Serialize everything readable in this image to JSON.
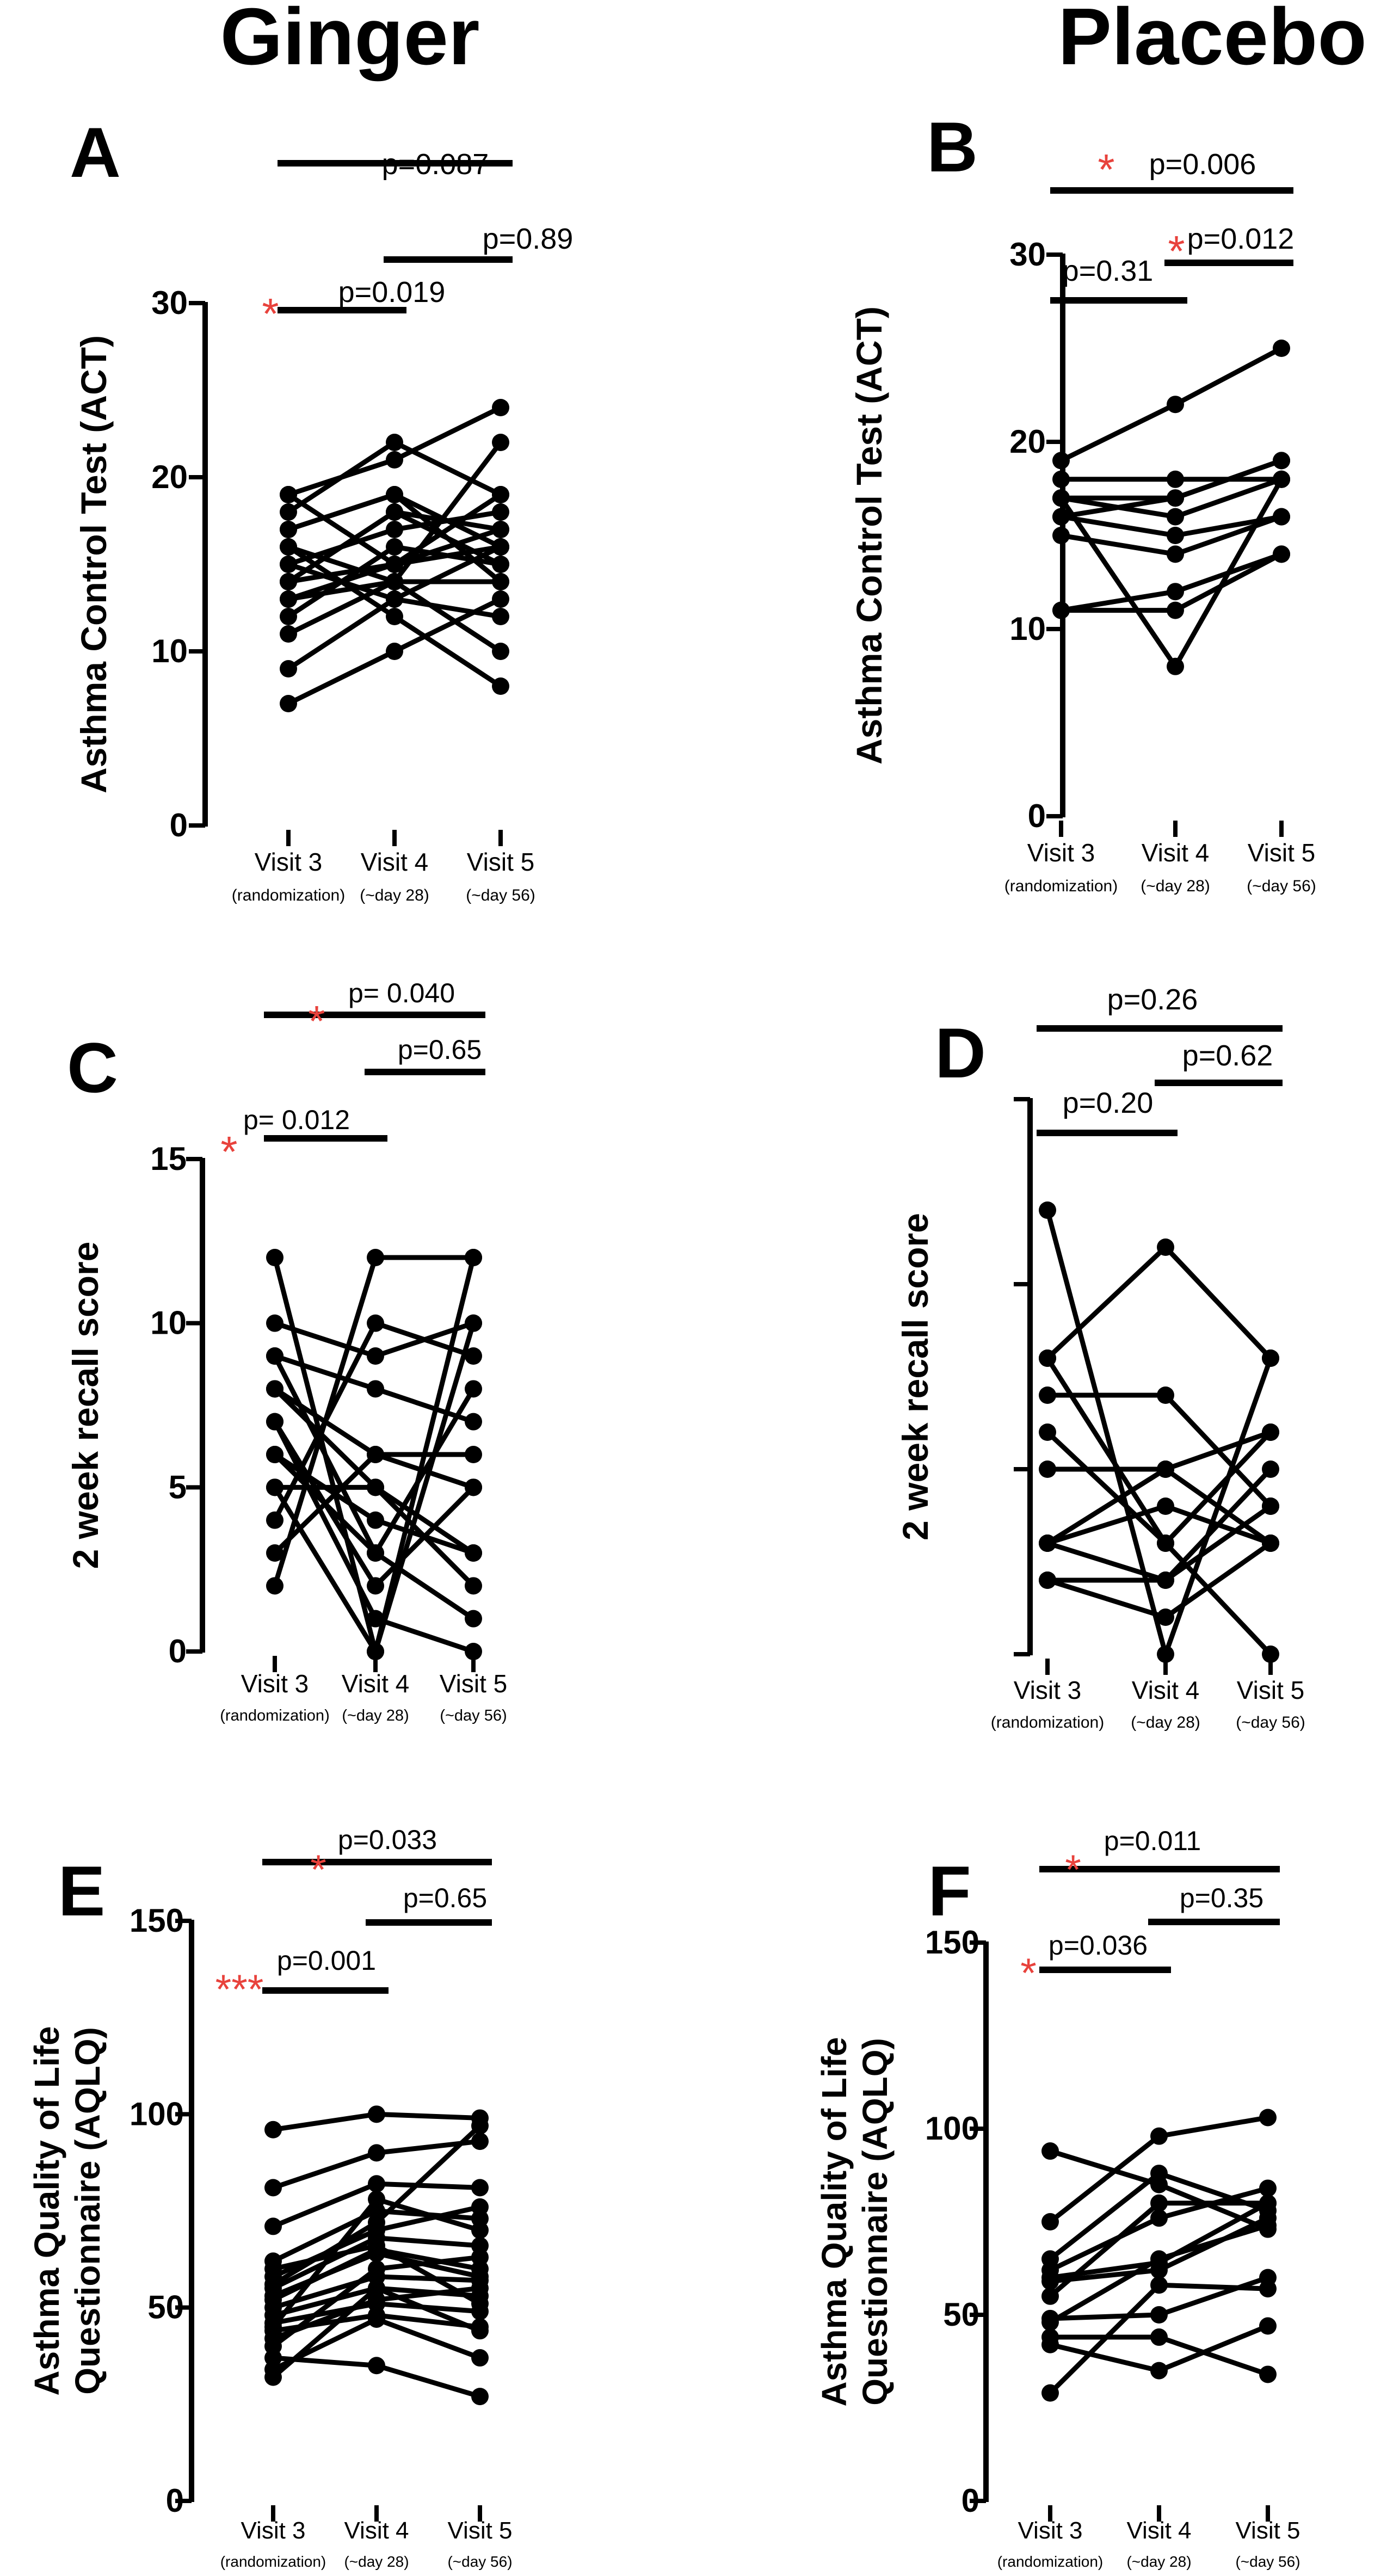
{
  "column_titles": {
    "ginger": "Ginger",
    "placebo": "Placebo"
  },
  "chart_data": [
    {
      "letter": "A",
      "type": "line",
      "group": "Ginger",
      "ylabel": "Asthma Control Test (ACT)",
      "ylim": [
        0,
        30
      ],
      "yticks": [
        0,
        10,
        20,
        30
      ],
      "ytick_labels": [
        "0",
        "10",
        "20",
        "30"
      ],
      "categories": [
        "Visit 3",
        "Visit 4",
        "Visit 5"
      ],
      "category_sublabels": [
        "(randomization)",
        "(~day  28)",
        "(~day 56)"
      ],
      "subjects": [
        [
          7,
          10,
          13
        ],
        [
          9,
          13,
          16
        ],
        [
          11,
          14,
          14
        ],
        [
          12,
          16,
          15
        ],
        [
          13,
          14,
          22
        ],
        [
          14,
          18,
          17
        ],
        [
          14,
          15,
          19
        ],
        [
          15,
          13,
          12
        ],
        [
          16,
          14,
          10
        ],
        [
          17,
          19,
          16
        ],
        [
          18,
          22,
          19
        ],
        [
          19,
          21,
          24
        ],
        [
          16,
          12,
          8
        ],
        [
          14,
          18,
          15
        ],
        [
          13,
          15,
          17
        ],
        [
          15,
          17,
          18
        ],
        [
          17,
          19,
          14
        ],
        [
          19,
          15,
          16
        ]
      ],
      "comparisons": [
        {
          "from": 0,
          "to": 1,
          "text": "p=0.019",
          "stars": "*"
        },
        {
          "from": 1,
          "to": 2,
          "text": "p=0.89",
          "stars": ""
        },
        {
          "from": 0,
          "to": 2,
          "text": "p=0.087",
          "stars": ""
        }
      ]
    },
    {
      "letter": "B",
      "type": "line",
      "group": "Placebo",
      "ylabel": "Asthma Control Test (ACT)",
      "ylim": [
        0,
        30
      ],
      "yticks": [
        0,
        10,
        20,
        30
      ],
      "ytick_labels": [
        "0",
        "10",
        "20",
        "30"
      ],
      "categories": [
        "Visit 3",
        "Visit 4",
        "Visit 5"
      ],
      "category_sublabels": [
        "(randomization)",
        "(~day  28)",
        "(~day 56)"
      ],
      "subjects": [
        [
          11,
          11,
          14
        ],
        [
          11,
          12,
          14
        ],
        [
          15,
          14,
          16
        ],
        [
          16,
          15,
          16
        ],
        [
          17,
          16,
          18
        ],
        [
          17,
          17,
          19
        ],
        [
          17,
          8,
          18
        ],
        [
          18,
          18,
          18
        ],
        [
          19,
          22,
          25
        ],
        [
          16,
          17,
          19
        ]
      ],
      "comparisons": [
        {
          "from": 0,
          "to": 1,
          "text": "p=0.31",
          "stars": ""
        },
        {
          "from": 1,
          "to": 2,
          "text": "p=0.012",
          "stars": "*"
        },
        {
          "from": 0,
          "to": 2,
          "text": "p=0.006",
          "stars": "*"
        }
      ]
    },
    {
      "letter": "C",
      "type": "line",
      "group": "Ginger",
      "ylabel": "2 week recall score",
      "ylim": [
        0,
        15
      ],
      "yticks": [
        0,
        5,
        10,
        15
      ],
      "ytick_labels": [
        "0",
        "5",
        "10",
        "15"
      ],
      "categories": [
        "Visit 3",
        "Visit 4",
        "Visit 5"
      ],
      "category_sublabels": [
        "(randomization)",
        "(~day  28)",
        "(~day 56)"
      ],
      "subjects": [
        [
          12,
          0,
          12
        ],
        [
          2,
          12,
          12
        ],
        [
          10,
          9,
          10
        ],
        [
          9,
          8,
          7
        ],
        [
          8,
          6,
          6
        ],
        [
          7,
          2,
          5
        ],
        [
          6,
          4,
          3
        ],
        [
          5,
          5,
          2
        ],
        [
          4,
          10,
          9
        ],
        [
          7,
          1,
          0
        ],
        [
          6,
          3,
          8
        ],
        [
          9,
          3,
          1
        ],
        [
          8,
          5,
          3
        ],
        [
          5,
          0,
          10
        ],
        [
          3,
          6,
          5
        ]
      ],
      "comparisons": [
        {
          "from": 0,
          "to": 1,
          "text": "p= 0.012",
          "stars": "*"
        },
        {
          "from": 1,
          "to": 2,
          "text": "p=0.65",
          "stars": ""
        },
        {
          "from": 0,
          "to": 2,
          "text": "p= 0.040",
          "stars": "*"
        }
      ]
    },
    {
      "letter": "D",
      "type": "line",
      "group": "Placebo",
      "ylabel": "2 week recall score",
      "ylim": [
        0,
        15
      ],
      "yticks": [
        0,
        5,
        10,
        15
      ],
      "ytick_labels": [
        "",
        "",
        "",
        ""
      ],
      "categories": [
        "Visit 3",
        "Visit 4",
        "Visit 5"
      ],
      "category_sublabels": [
        "(randomization)",
        "(~day  28)",
        "(~day 56)"
      ],
      "subjects": [
        [
          12,
          0,
          8
        ],
        [
          8,
          11,
          8
        ],
        [
          7,
          7,
          4
        ],
        [
          6,
          3,
          0
        ],
        [
          5,
          5,
          3
        ],
        [
          3,
          5,
          6
        ],
        [
          3,
          2,
          4
        ],
        [
          2,
          1,
          3
        ],
        [
          2,
          2,
          5
        ],
        [
          3,
          4,
          3
        ],
        [
          8,
          3,
          6
        ]
      ],
      "comparisons": [
        {
          "from": 0,
          "to": 1,
          "text": "p=0.20",
          "stars": ""
        },
        {
          "from": 1,
          "to": 2,
          "text": "p=0.62",
          "stars": ""
        },
        {
          "from": 0,
          "to": 2,
          "text": "p=0.26",
          "stars": ""
        }
      ]
    },
    {
      "letter": "E",
      "type": "line",
      "group": "Ginger",
      "ylabel": "Asthma Quality of Life Questionnaire (AQLQ)",
      "ylabel_lines": [
        "Asthma Quality of Life",
        "Questionnaire (AQLQ)"
      ],
      "ylim": [
        0,
        150
      ],
      "yticks": [
        0,
        50,
        100,
        150
      ],
      "ytick_labels": [
        "0",
        "50",
        "100",
        "150"
      ],
      "categories": [
        "Visit 3",
        "Visit 4",
        "Visit 5"
      ],
      "category_sublabels": [
        "(randomization)",
        "(~day  28)",
        "(~day 56)"
      ],
      "subjects": [
        [
          96,
          100,
          99
        ],
        [
          81,
          90,
          93
        ],
        [
          71,
          82,
          81
        ],
        [
          62,
          75,
          73
        ],
        [
          58,
          70,
          76
        ],
        [
          55,
          68,
          66
        ],
        [
          52,
          65,
          60
        ],
        [
          50,
          58,
          57
        ],
        [
          48,
          55,
          53
        ],
        [
          46,
          51,
          49
        ],
        [
          44,
          48,
          45
        ],
        [
          42,
          52,
          55
        ],
        [
          40,
          60,
          63
        ],
        [
          37,
          35,
          27
        ],
        [
          34,
          47,
          37
        ],
        [
          32,
          55,
          44
        ],
        [
          56,
          72,
          97
        ],
        [
          60,
          66,
          51
        ],
        [
          45,
          78,
          70
        ],
        [
          53,
          64,
          58
        ]
      ],
      "comparisons": [
        {
          "from": 0,
          "to": 1,
          "text": "p=0.001",
          "stars": "***"
        },
        {
          "from": 1,
          "to": 2,
          "text": "p=0.65",
          "stars": ""
        },
        {
          "from": 0,
          "to": 2,
          "text": "p=0.033",
          "stars": "*"
        }
      ]
    },
    {
      "letter": "F",
      "type": "line",
      "group": "Placebo",
      "ylabel": "Asthma Quality of Life Questionnaire (AQLQ)",
      "ylabel_lines": [
        "Asthma Quality of Life",
        "Questionnaire (AQLQ)"
      ],
      "ylim": [
        0,
        150
      ],
      "yticks": [
        0,
        50,
        100,
        150
      ],
      "ytick_labels": [
        "0",
        "50",
        "100",
        "150"
      ],
      "categories": [
        "Visit 3",
        "Visit 4",
        "Visit 5"
      ],
      "category_sublabels": [
        "(randomization)",
        "(~day  28)",
        "(~day 56)"
      ],
      "subjects": [
        [
          94,
          85,
          73
        ],
        [
          75,
          98,
          103
        ],
        [
          65,
          88,
          78
        ],
        [
          62,
          76,
          84
        ],
        [
          60,
          64,
          80
        ],
        [
          59,
          62,
          76
        ],
        [
          49,
          50,
          60
        ],
        [
          48,
          65,
          74
        ],
        [
          44,
          44,
          34
        ],
        [
          42,
          35,
          47
        ],
        [
          29,
          58,
          57
        ],
        [
          55,
          80,
          80
        ]
      ],
      "comparisons": [
        {
          "from": 0,
          "to": 1,
          "text": "p=0.036",
          "stars": "*"
        },
        {
          "from": 1,
          "to": 2,
          "text": "p=0.35",
          "stars": ""
        },
        {
          "from": 0,
          "to": 2,
          "text": "p=0.011",
          "stars": "*"
        }
      ]
    }
  ]
}
